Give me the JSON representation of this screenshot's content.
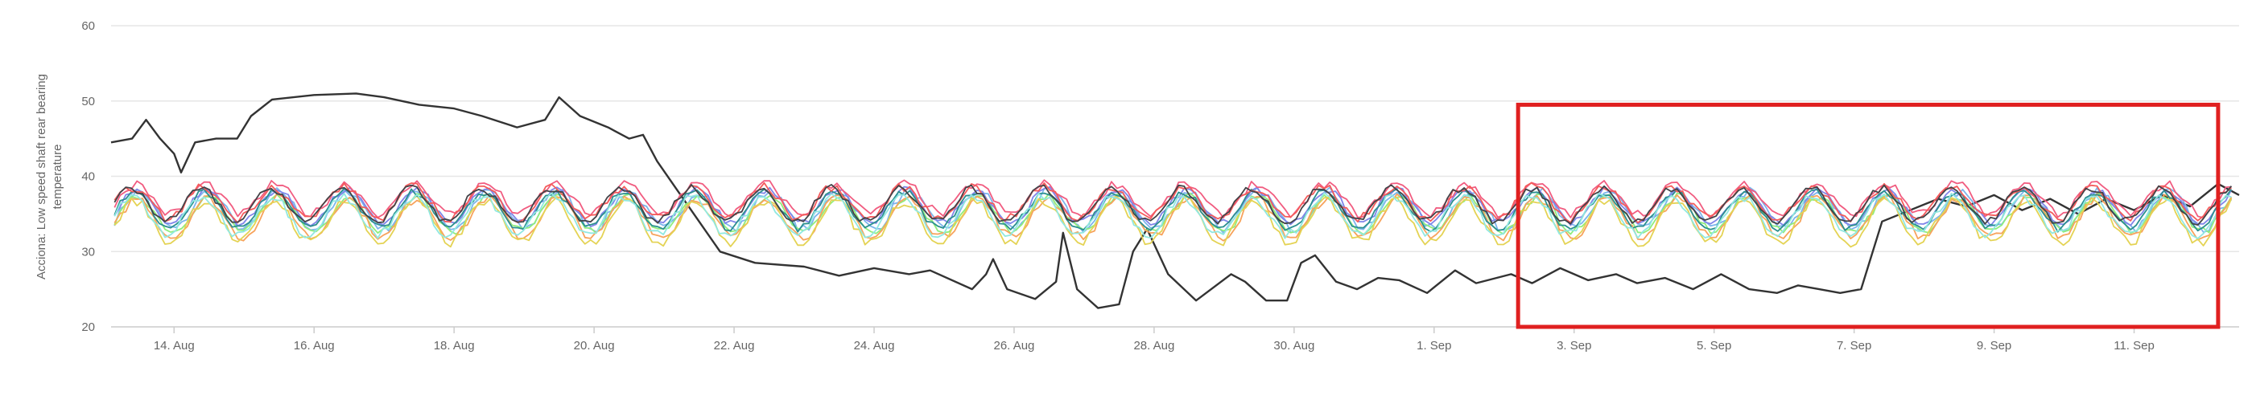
{
  "chart_data": {
    "type": "line",
    "ylabel_lines": [
      "Acciona: Low speed shaft rear bearing",
      "temperature"
    ],
    "y_ticks": [
      20,
      30,
      40,
      50,
      60
    ],
    "ylim": [
      20,
      60
    ],
    "x_ticks": [
      "14. Aug",
      "16. Aug",
      "18. Aug",
      "20. Aug",
      "22. Aug",
      "24. Aug",
      "26. Aug",
      "28. Aug",
      "30. Aug",
      "1. Sep",
      "3. Sep",
      "5. Sep",
      "7. Sep",
      "9. Sep",
      "11. Sep"
    ],
    "xlim_days": [
      -0.9,
      29.5
    ],
    "grid": "horizontal",
    "legend": "none",
    "highlight_box_days": [
      19.2,
      29.2
    ],
    "highlight_box_values": [
      20,
      49.5
    ],
    "highlight_color": "#e02020",
    "series": [
      {
        "color": "#333333",
        "knots": [
          [
            -0.9,
            44.5
          ],
          [
            -0.6,
            45
          ],
          [
            -0.4,
            47.5
          ],
          [
            -0.2,
            45
          ],
          [
            0,
            43
          ],
          [
            0.1,
            40.5
          ],
          [
            0.3,
            44.5
          ],
          [
            0.6,
            45
          ],
          [
            0.9,
            45
          ],
          [
            1.1,
            48
          ],
          [
            1.4,
            50.2
          ],
          [
            2,
            50.8
          ],
          [
            2.6,
            51
          ],
          [
            3,
            50.5
          ],
          [
            3.5,
            49.5
          ],
          [
            4,
            49
          ],
          [
            4.4,
            48
          ],
          [
            4.9,
            46.5
          ],
          [
            5.3,
            47.5
          ],
          [
            5.5,
            50.5
          ],
          [
            5.8,
            48
          ],
          [
            6.2,
            46.5
          ],
          [
            6.5,
            45
          ],
          [
            6.7,
            45.5
          ],
          [
            6.9,
            42
          ],
          [
            7.2,
            38
          ],
          [
            7.5,
            34
          ],
          [
            7.8,
            30
          ],
          [
            8.3,
            28.5
          ],
          [
            9,
            28
          ],
          [
            9.5,
            26.8
          ],
          [
            10,
            27.8
          ],
          [
            10.5,
            27
          ],
          [
            10.8,
            27.5
          ],
          [
            11.4,
            25
          ],
          [
            11.5,
            26
          ],
          [
            11.6,
            27
          ],
          [
            11.7,
            29
          ],
          [
            11.9,
            25
          ],
          [
            12.3,
            23.7
          ],
          [
            12.6,
            26
          ],
          [
            12.7,
            32.5
          ],
          [
            12.9,
            25
          ],
          [
            13.2,
            22.5
          ],
          [
            13.5,
            23
          ],
          [
            13.7,
            30
          ],
          [
            13.9,
            33
          ],
          [
            14.2,
            27
          ],
          [
            14.6,
            23.5
          ],
          [
            15.1,
            27
          ],
          [
            15.3,
            26
          ],
          [
            15.6,
            23.5
          ],
          [
            15.9,
            23.5
          ],
          [
            16.1,
            28.5
          ],
          [
            16.3,
            29.5
          ],
          [
            16.6,
            26
          ],
          [
            16.9,
            25
          ],
          [
            17.2,
            26.5
          ],
          [
            17.5,
            26.2
          ],
          [
            17.9,
            24.5
          ],
          [
            18.3,
            27.5
          ],
          [
            18.6,
            25.8
          ],
          [
            19.1,
            27
          ],
          [
            19.4,
            25.8
          ],
          [
            19.8,
            27.8
          ],
          [
            20.2,
            26.2
          ],
          [
            20.6,
            27
          ],
          [
            20.9,
            25.8
          ],
          [
            21.3,
            26.5
          ],
          [
            21.7,
            25
          ],
          [
            22.1,
            27
          ],
          [
            22.5,
            25
          ],
          [
            22.9,
            24.5
          ],
          [
            23.2,
            25.5
          ],
          [
            23.5,
            25
          ],
          [
            23.8,
            24.5
          ],
          [
            24.1,
            25
          ],
          [
            24.4,
            34
          ],
          [
            24.8,
            35.5
          ],
          [
            25.2,
            37
          ],
          [
            25.6,
            36
          ],
          [
            26,
            37.5
          ],
          [
            26.4,
            35.5
          ],
          [
            26.8,
            37
          ],
          [
            27.2,
            35
          ],
          [
            27.6,
            37
          ],
          [
            28,
            35.5
          ],
          [
            28.4,
            37.5
          ],
          [
            28.8,
            36
          ],
          [
            29.2,
            39
          ],
          [
            29.5,
            37.5
          ]
        ]
      },
      {
        "color": "#7cb5ec",
        "base": 35.5,
        "amp": 2.5,
        "phase": 0.0,
        "noise": 0.6
      },
      {
        "color": "#90ed7d",
        "base": 35.0,
        "amp": 2.3,
        "phase": 0.3,
        "noise": 0.5
      },
      {
        "color": "#f7a35c",
        "base": 34.5,
        "amp": 2.6,
        "phase": 0.6,
        "noise": 0.6
      },
      {
        "color": "#8085e9",
        "base": 36.0,
        "amp": 2.2,
        "phase": 0.9,
        "noise": 0.5
      },
      {
        "color": "#f15c80",
        "base": 37.0,
        "amp": 2.0,
        "phase": 1.2,
        "noise": 0.6
      },
      {
        "color": "#e4d354",
        "base": 34.0,
        "amp": 2.8,
        "phase": 1.5,
        "noise": 0.7
      },
      {
        "color": "#2b908f",
        "base": 35.5,
        "amp": 2.4,
        "phase": 1.8,
        "noise": 0.5
      },
      {
        "color": "#f45b5b",
        "base": 36.5,
        "amp": 2.1,
        "phase": 2.1,
        "noise": 0.6
      },
      {
        "color": "#91e8e1",
        "base": 34.8,
        "amp": 2.5,
        "phase": 2.4,
        "noise": 0.6
      },
      {
        "color": "#434348",
        "base": 36.2,
        "amp": 2.2,
        "phase": 2.7,
        "noise": 0.5
      }
    ]
  }
}
